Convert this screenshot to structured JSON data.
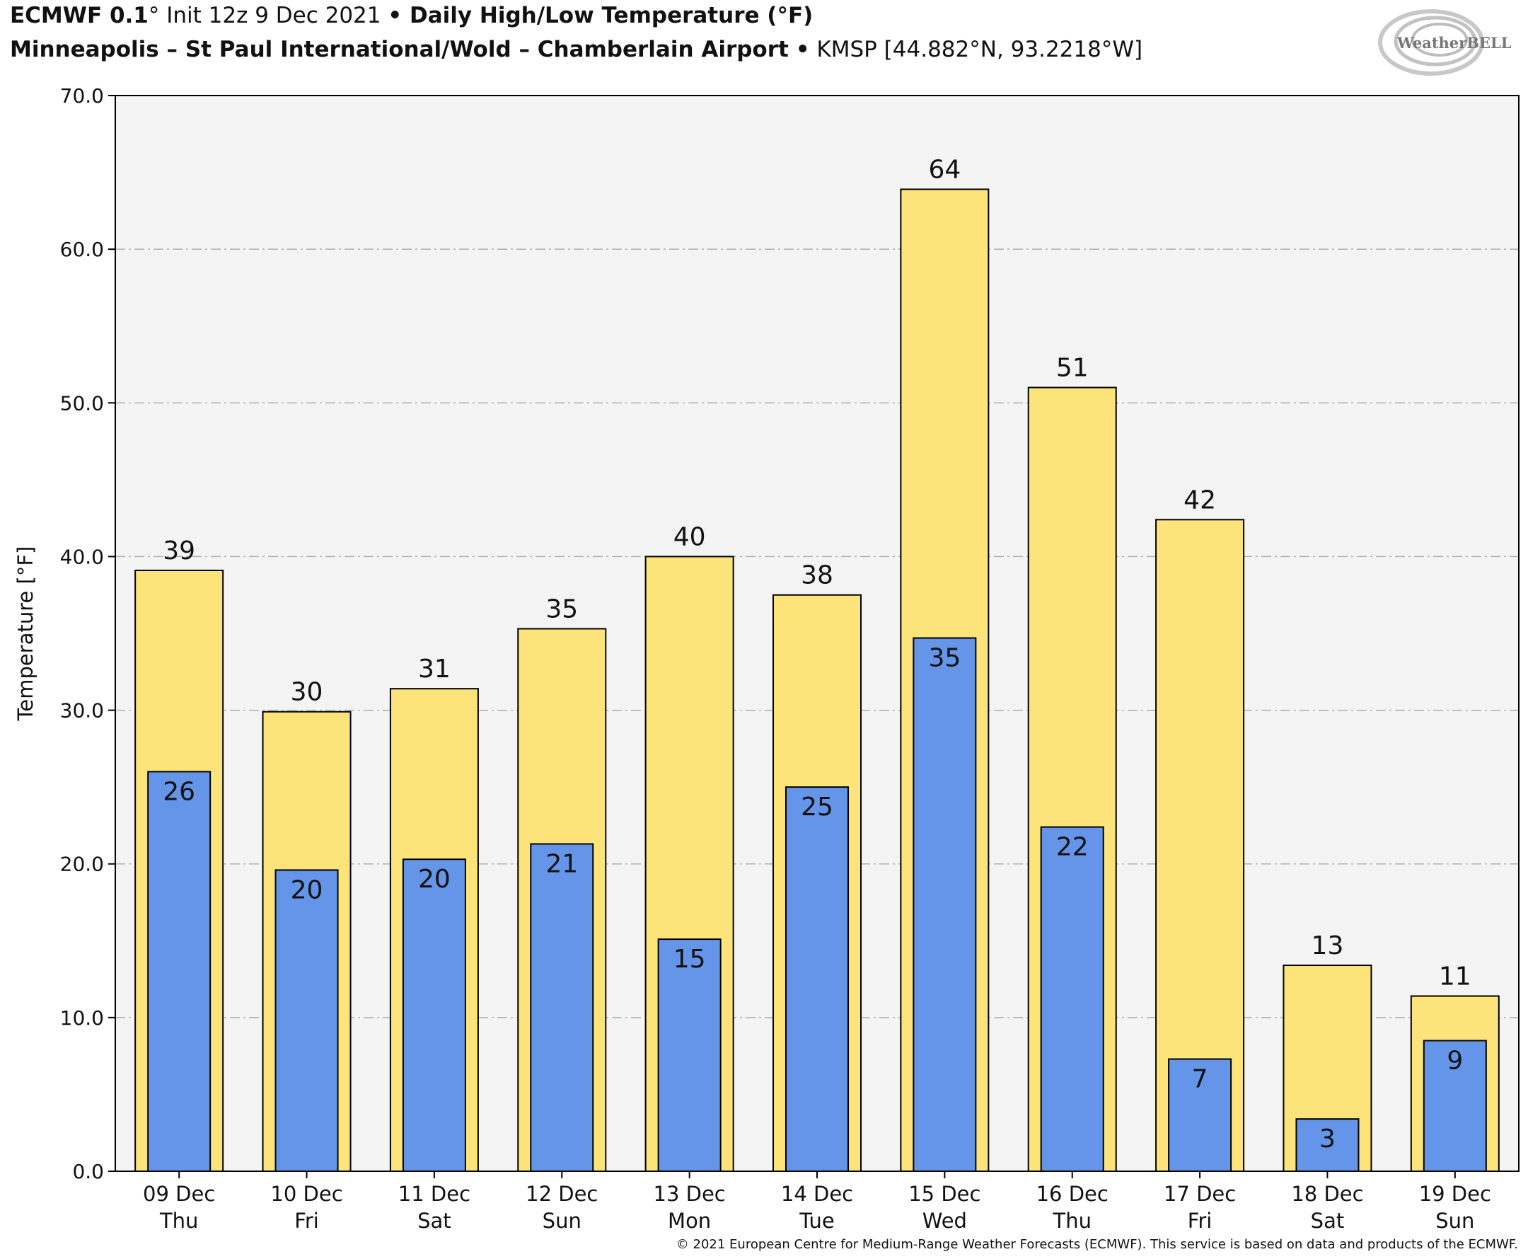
{
  "header": {
    "model": "ECMWF 0.1",
    "degree_mark": "°",
    "init": " Init 12z 9 Dec 2021 ",
    "bullet": "•",
    "product": " Daily High/Low Temperature (°F)",
    "station_name": "Minneapolis – St Paul International/Wold – Chamberlain Airport",
    "station_info": " KMSP [44.882°N, 93.2218°W]"
  },
  "logo": {
    "text": "WeatherBELL",
    "icon": "swirl-icon"
  },
  "footer": "© 2021 European Centre for Medium-Range Weather Forecasts (ECMWF). This service is based on data and products of the ECMWF.",
  "chart_data": {
    "type": "bar",
    "title": "Daily High/Low Temperature (°F)",
    "ylabel": "Temperature [°F]",
    "xlabel": "",
    "ylim": [
      0,
      70
    ],
    "yticks": [
      "0.0",
      "10.0",
      "20.0",
      "30.0",
      "40.0",
      "50.0",
      "60.0",
      "70.0"
    ],
    "grid": true,
    "categories": [
      [
        "09 Dec",
        "Thu"
      ],
      [
        "10 Dec",
        "Fri"
      ],
      [
        "11 Dec",
        "Sat"
      ],
      [
        "12 Dec",
        "Sun"
      ],
      [
        "13 Dec",
        "Mon"
      ],
      [
        "14 Dec",
        "Tue"
      ],
      [
        "15 Dec",
        "Wed"
      ],
      [
        "16 Dec",
        "Thu"
      ],
      [
        "17 Dec",
        "Fri"
      ],
      [
        "18 Dec",
        "Sat"
      ],
      [
        "19 Dec",
        "Sun"
      ]
    ],
    "series": [
      {
        "values": [
          39.1,
          29.9,
          31.4,
          35.3,
          40.0,
          37.5,
          63.9,
          51.0,
          42.4,
          13.4,
          11.4
        ],
        "labels": [
          "39",
          "30",
          "31",
          "35",
          "40",
          "38",
          "64",
          "51",
          "42",
          "13",
          "11"
        ],
        "color": "#fce47a"
      },
      {
        "values": [
          26.0,
          19.6,
          20.3,
          21.3,
          15.1,
          25.0,
          34.7,
          22.4,
          7.3,
          3.4,
          8.5
        ],
        "labels": [
          "26",
          "20",
          "20",
          "21",
          "15",
          "25",
          "35",
          "22",
          "7",
          "3",
          "9"
        ],
        "color": "#6495e8"
      }
    ],
    "colors": {
      "plot_background": "#f4f4f4",
      "edge": "#000000",
      "grid": "#b0b0b0"
    }
  }
}
